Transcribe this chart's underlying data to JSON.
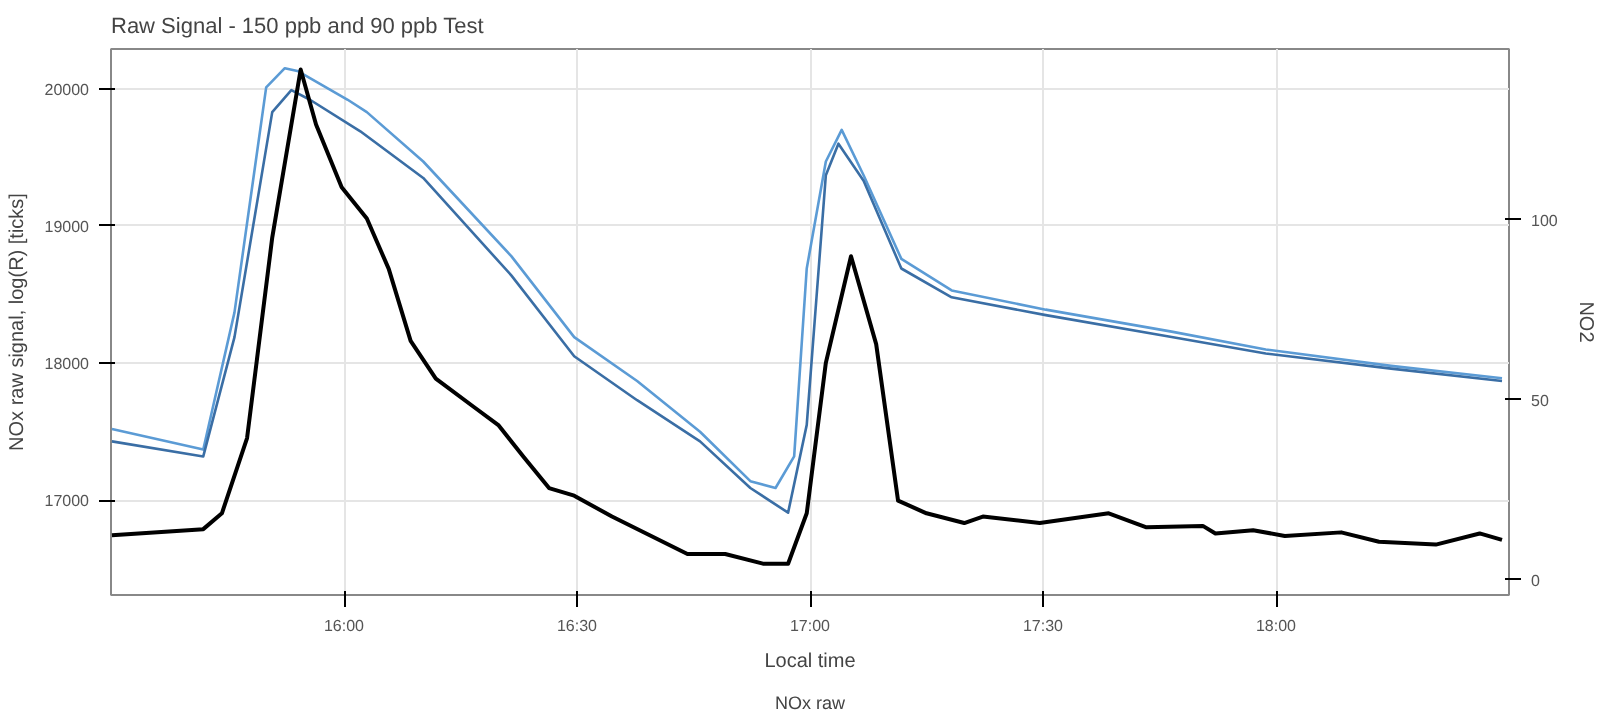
{
  "chart_data": {
    "type": "line",
    "title": "Raw Signal - 150 ppb and 90 ppb Test",
    "xlabel": "Local time",
    "ylabel": "NOx raw signal, log(R) [ticks]",
    "y2label": "NO2",
    "legend_title": "NOx raw",
    "xlim": [
      15.5,
      18.5
    ],
    "xticks": [
      {
        "value": 16,
        "label": "16:00"
      },
      {
        "value": 16.5,
        "label": "16:30"
      },
      {
        "value": 17,
        "label": "17:00"
      },
      {
        "value": 17.5,
        "label": "17:30"
      },
      {
        "value": 18,
        "label": "18:00"
      }
    ],
    "ylim": [
      16310,
      20290
    ],
    "yticks": [
      17000,
      18000,
      19000,
      20000
    ],
    "y2lim": [
      -4.2,
      147.5
    ],
    "y2ticks": [
      0,
      50,
      100
    ],
    "grid": true,
    "series": [
      {
        "color": "#5b9bd5",
        "x": [
          15.502,
          15.698,
          15.765,
          15.833,
          15.873,
          15.9,
          16.008,
          16.049,
          16.17,
          16.359,
          16.494,
          16.629,
          16.764,
          16.872,
          16.926,
          16.966,
          16.993,
          17.034,
          17.068,
          17.115,
          17.196,
          17.304,
          17.506,
          17.776,
          17.978,
          18.247,
          18.485
        ],
        "values": [
          17520,
          17370,
          18370,
          20010,
          20150,
          20130,
          19920,
          19830,
          19470,
          18780,
          18190,
          17870,
          17500,
          17140,
          17090,
          17320,
          18690,
          19470,
          19700,
          19370,
          18760,
          18530,
          18390,
          18230,
          18100,
          17980,
          17890
        ]
      },
      {
        "color": "#3a6ea5",
        "x": [
          15.502,
          15.698,
          15.765,
          15.846,
          15.887,
          15.927,
          16.035,
          16.17,
          16.359,
          16.494,
          16.629,
          16.764,
          16.872,
          16.953,
          16.993,
          17.034,
          17.061,
          17.115,
          17.196,
          17.304,
          17.506,
          17.776,
          17.978,
          18.247,
          18.485
        ],
        "values": [
          17430,
          17320,
          18190,
          19830,
          19990,
          19920,
          19690,
          19350,
          18640,
          18050,
          17730,
          17430,
          17090,
          16910,
          17550,
          19370,
          19600,
          19330,
          18690,
          18480,
          18350,
          18190,
          18070,
          17960,
          17870
        ]
      },
      {
        "color": "#000000",
        "axis": "y2",
        "x": [
          15.502,
          15.698,
          15.738,
          15.792,
          15.846,
          15.907,
          15.94,
          15.995,
          16.049,
          16.096,
          16.143,
          16.197,
          16.278,
          16.332,
          16.386,
          16.44,
          16.494,
          16.575,
          16.656,
          16.737,
          16.818,
          16.899,
          16.953,
          16.993,
          17.034,
          17.088,
          17.142,
          17.189,
          17.25,
          17.331,
          17.371,
          17.493,
          17.641,
          17.722,
          17.843,
          17.87,
          17.951,
          18.019,
          18.14,
          18.221,
          18.343,
          18.437,
          18.485
        ],
        "values": [
          12.4,
          14.1,
          18.5,
          39.4,
          95.1,
          141.8,
          126.5,
          109.1,
          100.4,
          86.4,
          66.4,
          55.9,
          48.1,
          42.9,
          34.1,
          25.5,
          23.4,
          17.6,
          12.4,
          7.2,
          7.2,
          4.5,
          4.5,
          18.5,
          60.3,
          89.9,
          65.5,
          22.0,
          18.5,
          15.8,
          17.6,
          15.8,
          18.5,
          14.6,
          15.0,
          12.9,
          13.8,
          12.2,
          13.2,
          10.6,
          9.8,
          12.9,
          11.1
        ]
      }
    ]
  }
}
